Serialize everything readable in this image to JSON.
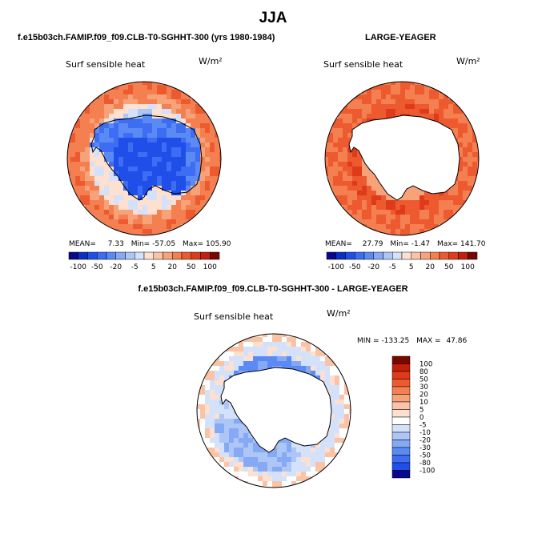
{
  "main_title": "JJA",
  "colors": {
    "levels": [
      "#08088f",
      "#0a2fc4",
      "#1f4ee8",
      "#3d6df2",
      "#5c8af5",
      "#85a9f5",
      "#aec6f5",
      "#d3e1fb",
      "#ffffff",
      "#fde0cf",
      "#fbc3a6",
      "#f8a27a",
      "#f47f50",
      "#ee5a30",
      "#df3a1a",
      "#c21f0c",
      "#a00f05",
      "#7a0600"
    ],
    "land": "#ffffff",
    "coast": "#000000"
  },
  "chart_data": [
    {
      "type": "heatmap",
      "panel_title": "f.e15b03ch.FAMIP.f09_f09.CLB-T0-SGHHT-300 (yrs 1980-1984)",
      "variable": "Surf sensible heat",
      "units": "W/m²",
      "stats": {
        "mean_label": "MEAN=",
        "mean": "7.33",
        "min_label": "Min=",
        "min": "-57.05",
        "max_label": "Max=",
        "max": "105.90"
      },
      "colorbar_ticks": [
        "-100",
        "-50",
        "-20",
        "-5",
        "5",
        "20",
        "50",
        "100"
      ],
      "contour_levels": [
        -100,
        -80,
        -50,
        -30,
        -20,
        -10,
        -5,
        0,
        5,
        10,
        20,
        30,
        50,
        80,
        100
      ],
      "antarctica_masked": false
    },
    {
      "type": "heatmap",
      "panel_title": "LARGE-YEAGER",
      "variable": "Surf sensible heat",
      "units": "W/m²",
      "stats": {
        "mean_label": "MEAN=",
        "mean": "27.79",
        "min_label": "Min=",
        "min": "-1.47",
        "max_label": "Max=",
        "max": "141.70"
      },
      "colorbar_ticks": [
        "-100",
        "-50",
        "-20",
        "-5",
        "5",
        "20",
        "50",
        "100"
      ],
      "contour_levels": [
        -100,
        -80,
        -50,
        -30,
        -20,
        -10,
        -5,
        0,
        5,
        10,
        20,
        30,
        50,
        80,
        100
      ],
      "antarctica_masked": true
    },
    {
      "type": "heatmap",
      "panel_title": "f.e15b03ch.FAMIP.f09_f09.CLB-T0-SGHHT-300 - LARGE-YEAGER",
      "variable": "Surf sensible heat",
      "units": "W/m²",
      "stats": {
        "min_label": "MIN =",
        "min": "-133.25",
        "max_label": "MAX =",
        "max": "47.86"
      },
      "colorbar_ticks": [
        "100",
        "80",
        "50",
        "30",
        "20",
        "10",
        "5",
        "0",
        "-5",
        "-10",
        "-20",
        "-30",
        "-50",
        "-80",
        "-100"
      ],
      "contour_levels": [
        -100,
        -80,
        -50,
        -30,
        -20,
        -10,
        -5,
        0,
        5,
        10,
        20,
        30,
        50,
        80,
        100
      ],
      "antarctica_masked": true
    }
  ]
}
